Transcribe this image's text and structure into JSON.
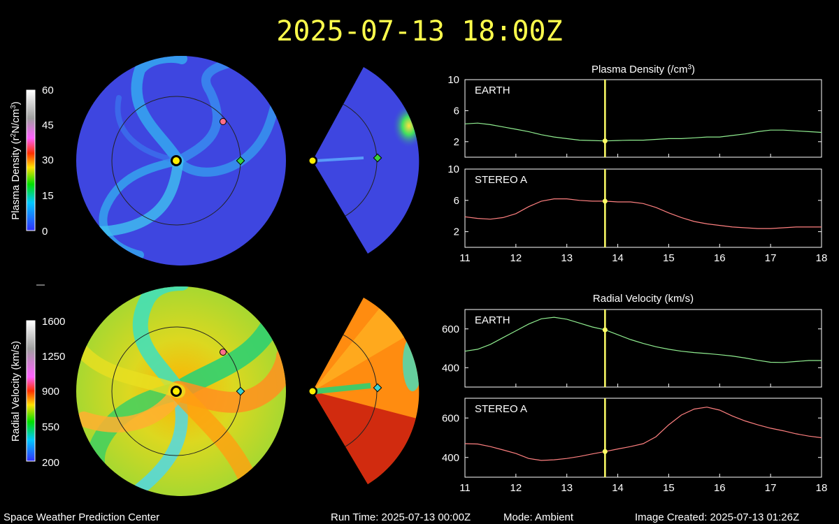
{
  "header": {
    "timestamp": "2025-07-13 18:00Z"
  },
  "footer": {
    "center_name": "Space Weather Prediction Center",
    "run_time": "Run Time: 2025-07-13 00:00Z",
    "mode": "Mode: Ambient",
    "image_created": "Image Created: 2025-07-13 01:26Z"
  },
  "colorbars": {
    "density": {
      "label": "Plasma Density (r",
      "label_sup": "2",
      "label_mid": "N/cm",
      "label_sup2": "3",
      "label_end": ")",
      "ticks": [
        "60",
        "45",
        "30",
        "15",
        "0"
      ]
    },
    "velocity": {
      "label": "Radial Velocity (km/s)",
      "ticks": [
        "1600",
        "1250",
        "900",
        "550",
        "200"
      ]
    }
  },
  "colors": {
    "title": "#ffff4c",
    "earth_line": "#90ee90",
    "stereo_line": "#ff8080",
    "time_marker": "#ffff66",
    "density_background": "#3e46e0",
    "earth_marker": "#39d039",
    "stereo_marker": "#ff6f8a"
  },
  "chart_data": [
    {
      "type": "line",
      "title": "Plasma Density (/cm",
      "title_sup": "3",
      "title_end": ")",
      "panel_label": "EARTH",
      "xlim": [
        11,
        18
      ],
      "ylim": [
        0,
        10
      ],
      "x_ticks": [
        "11",
        "12",
        "13",
        "14",
        "15",
        "16",
        "17",
        "18"
      ],
      "y_ticks": [
        10,
        6,
        2
      ],
      "series": [
        {
          "x": [
            11,
            11.25,
            11.5,
            11.75,
            12,
            12.25,
            12.5,
            12.75,
            13,
            13.25,
            13.5,
            13.75,
            14,
            14.25,
            14.5,
            14.75,
            15,
            15.25,
            15.5,
            15.75,
            16,
            16.25,
            16.5,
            16.75,
            17,
            17.25,
            17.5,
            17.75,
            18
          ],
          "values": [
            4.3,
            4.4,
            4.2,
            3.9,
            3.6,
            3.3,
            2.9,
            2.6,
            2.4,
            2.2,
            2.15,
            2.1,
            2.15,
            2.2,
            2.2,
            2.3,
            2.4,
            2.4,
            2.5,
            2.6,
            2.6,
            2.8,
            3.0,
            3.3,
            3.5,
            3.5,
            3.4,
            3.3,
            3.2
          ]
        }
      ],
      "time_marker_x": 13.75
    },
    {
      "type": "line",
      "panel_label": "STEREO A",
      "xlim": [
        11,
        18
      ],
      "ylim": [
        0,
        10
      ],
      "x_ticks": [
        "11",
        "12",
        "13",
        "14",
        "15",
        "16",
        "17",
        "18"
      ],
      "y_ticks": [
        10,
        6,
        2
      ],
      "series": [
        {
          "x": [
            11,
            11.25,
            11.5,
            11.75,
            12,
            12.25,
            12.5,
            12.75,
            13,
            13.25,
            13.5,
            13.75,
            14,
            14.25,
            14.5,
            14.75,
            15,
            15.25,
            15.5,
            15.75,
            16,
            16.25,
            16.5,
            16.75,
            17,
            17.25,
            17.5,
            17.75,
            18
          ],
          "values": [
            3.9,
            3.7,
            3.6,
            3.8,
            4.3,
            5.2,
            5.9,
            6.2,
            6.2,
            6.0,
            5.9,
            5.9,
            5.8,
            5.8,
            5.6,
            5.1,
            4.4,
            3.8,
            3.3,
            3.0,
            2.8,
            2.6,
            2.5,
            2.4,
            2.4,
            2.5,
            2.6,
            2.6,
            2.6
          ]
        }
      ],
      "time_marker_x": 13.75
    },
    {
      "type": "line",
      "title": "Radial Velocity (km/s)",
      "panel_label": "EARTH",
      "xlim": [
        11,
        18
      ],
      "ylim": [
        300,
        700
      ],
      "x_ticks": [
        "11",
        "12",
        "13",
        "14",
        "15",
        "16",
        "17",
        "18"
      ],
      "y_ticks": [
        600,
        400
      ],
      "series": [
        {
          "x": [
            11,
            11.25,
            11.5,
            11.75,
            12,
            12.25,
            12.5,
            12.75,
            13,
            13.25,
            13.5,
            13.75,
            14,
            14.25,
            14.5,
            14.75,
            15,
            15.25,
            15.5,
            15.75,
            16,
            16.25,
            16.5,
            16.75,
            17,
            17.25,
            17.5,
            17.75,
            18
          ],
          "values": [
            485,
            495,
            520,
            555,
            590,
            625,
            652,
            660,
            650,
            630,
            610,
            595,
            570,
            545,
            525,
            508,
            495,
            485,
            478,
            473,
            467,
            460,
            450,
            438,
            428,
            427,
            432,
            437,
            437
          ]
        }
      ],
      "time_marker_x": 13.75
    },
    {
      "type": "line",
      "panel_label": "STEREO A",
      "xlim": [
        11,
        18
      ],
      "ylim": [
        300,
        700
      ],
      "x_ticks": [
        "11",
        "12",
        "13",
        "14",
        "15",
        "16",
        "17",
        "18"
      ],
      "y_ticks": [
        600,
        400
      ],
      "series": [
        {
          "x": [
            11,
            11.25,
            11.5,
            11.75,
            12,
            12.25,
            12.5,
            12.75,
            13,
            13.25,
            13.5,
            13.75,
            14,
            14.25,
            14.5,
            14.75,
            15,
            15.25,
            15.5,
            15.75,
            16,
            16.25,
            16.5,
            16.75,
            17,
            17.25,
            17.5,
            17.75,
            18
          ],
          "values": [
            470,
            468,
            455,
            438,
            420,
            395,
            385,
            388,
            395,
            405,
            418,
            430,
            443,
            455,
            470,
            505,
            565,
            615,
            645,
            655,
            640,
            610,
            585,
            565,
            548,
            535,
            520,
            508,
            500
          ]
        }
      ],
      "time_marker_x": 13.75
    }
  ]
}
